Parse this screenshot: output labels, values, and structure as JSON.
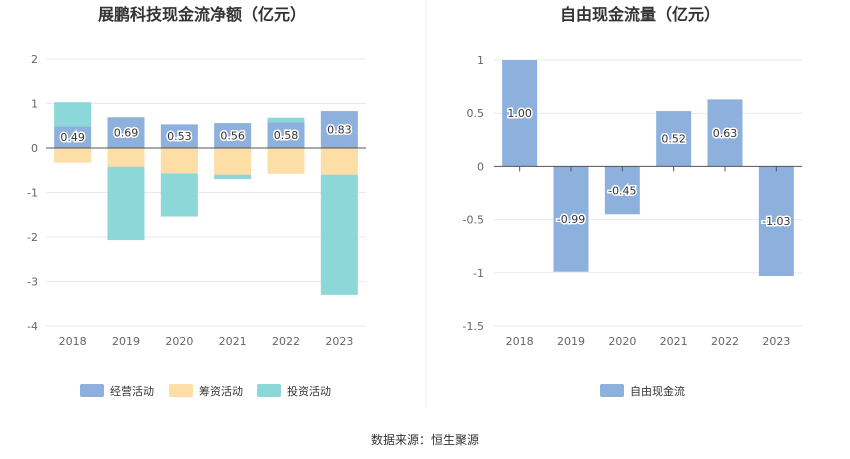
{
  "source_note": "数据来源：恒生聚源",
  "colors": {
    "operating": "#8eb0dc",
    "financing": "#fddea6",
    "investing": "#8cd8d8",
    "fcf": "#8eb0dc",
    "grid": "#e6e9f0",
    "axis": "#555555"
  },
  "chart_data": [
    {
      "type": "bar",
      "stacked": true,
      "title": "展鹏科技现金流净额（亿元）",
      "categories": [
        "2018",
        "2019",
        "2020",
        "2021",
        "2022",
        "2023"
      ],
      "ylim": [
        -4,
        2
      ],
      "yticks": [
        2,
        1,
        0,
        -1,
        -2,
        -3,
        -4
      ],
      "grid": true,
      "legend_position": "bottom",
      "series": [
        {
          "name": "经营活动",
          "color_key": "operating",
          "values": [
            0.49,
            0.69,
            0.53,
            0.56,
            0.58,
            0.83
          ],
          "labels": [
            "0.49",
            "0.69",
            "0.53",
            "0.56",
            "0.58",
            "0.83"
          ]
        },
        {
          "name": "筹资活动",
          "color_key": "financing",
          "values": [
            -0.33,
            -0.42,
            -0.57,
            -0.6,
            -0.58,
            -0.6
          ]
        },
        {
          "name": "投资活动",
          "color_key": "investing",
          "values": [
            0.54,
            -1.65,
            -0.97,
            -0.1,
            0.1,
            -2.7
          ]
        }
      ]
    },
    {
      "type": "bar",
      "title": "自由现金流量（亿元）",
      "categories": [
        "2018",
        "2019",
        "2020",
        "2021",
        "2022",
        "2023"
      ],
      "ylim": [
        -1.5,
        1
      ],
      "yticks": [
        "1",
        "0.5",
        "0",
        "-0.5",
        "-1",
        "-1.5"
      ],
      "grid": true,
      "legend_position": "bottom",
      "series": [
        {
          "name": "自由现金流",
          "color_key": "fcf",
          "values": [
            1.0,
            -0.99,
            -0.45,
            0.52,
            0.63,
            -1.03
          ],
          "labels": [
            "1.00",
            "-0.99",
            "-0.45",
            "0.52",
            "0.63",
            "-1.03"
          ]
        }
      ]
    }
  ]
}
